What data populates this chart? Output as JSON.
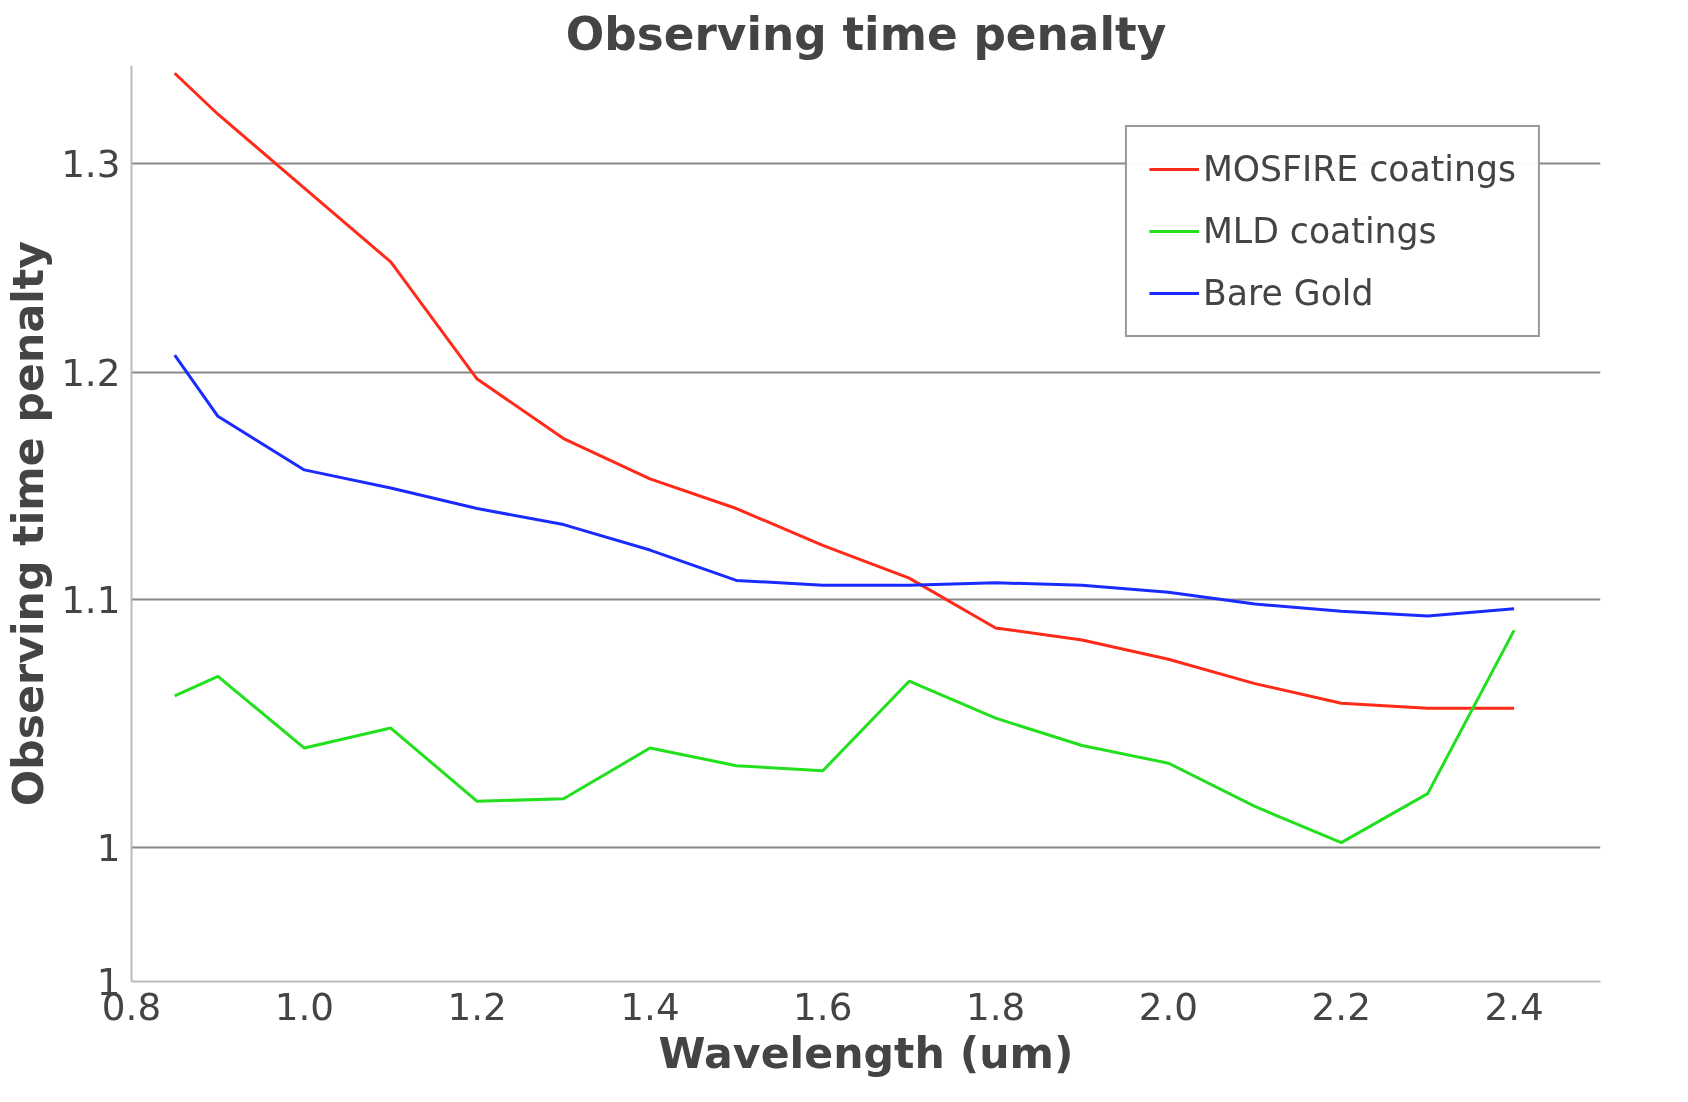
{
  "chart_data": {
    "type": "line",
    "title": "Observing time penalty",
    "xlabel": "Wavelength (um)",
    "ylabel": "Observing time penalty",
    "x": [
      0.85,
      0.9,
      1.0,
      1.1,
      1.2,
      1.3,
      1.4,
      1.5,
      1.6,
      1.7,
      1.8,
      1.9,
      2.0,
      2.1,
      2.2,
      2.3,
      2.4
    ],
    "series": [
      {
        "name": "MOSFIRE coatings",
        "color": "#ff2a1a",
        "values": [
          1.346,
          1.325,
          1.288,
          1.252,
          1.197,
          1.17,
          1.152,
          1.139,
          1.123,
          1.109,
          1.088,
          1.083,
          1.075,
          1.065,
          1.057,
          1.055,
          1.055
        ]
      },
      {
        "name": "MLD coatings",
        "color": "#22e01e",
        "values": [
          1.06,
          1.068,
          1.039,
          1.047,
          1.018,
          1.019,
          1.039,
          1.032,
          1.03,
          1.066,
          1.051,
          1.04,
          1.033,
          1.016,
          1.002,
          1.021,
          1.087
        ]
      },
      {
        "name": "Bare Gold",
        "color": "#1a2bff",
        "values": [
          1.208,
          1.18,
          1.156,
          1.148,
          1.139,
          1.132,
          1.121,
          1.108,
          1.106,
          1.106,
          1.107,
          1.106,
          1.103,
          1.098,
          1.095,
          1.093,
          1.096
        ]
      }
    ],
    "xlim": [
      0.8,
      2.5
    ],
    "xticks": [
      {
        "value": 0.8,
        "label": "0.8"
      },
      {
        "value": 1.0,
        "label": "1.0"
      },
      {
        "value": 1.2,
        "label": "1.2"
      },
      {
        "value": 1.4,
        "label": "1.4"
      },
      {
        "value": 1.6,
        "label": "1.6"
      },
      {
        "value": 1.8,
        "label": "1.8"
      },
      {
        "value": 2.0,
        "label": "2.0"
      },
      {
        "value": 2.2,
        "label": "2.2"
      },
      {
        "value": 2.4,
        "label": "2.4"
      }
    ],
    "ylim": [
      0.95,
      1.35
    ],
    "yticks": [
      {
        "value": 0.95,
        "label": "1"
      },
      1,
      1.1,
      1.2,
      1.3
    ],
    "log": "y",
    "grid": "y",
    "legend": "top right",
    "marker": "none",
    "line_style": "solid"
  }
}
